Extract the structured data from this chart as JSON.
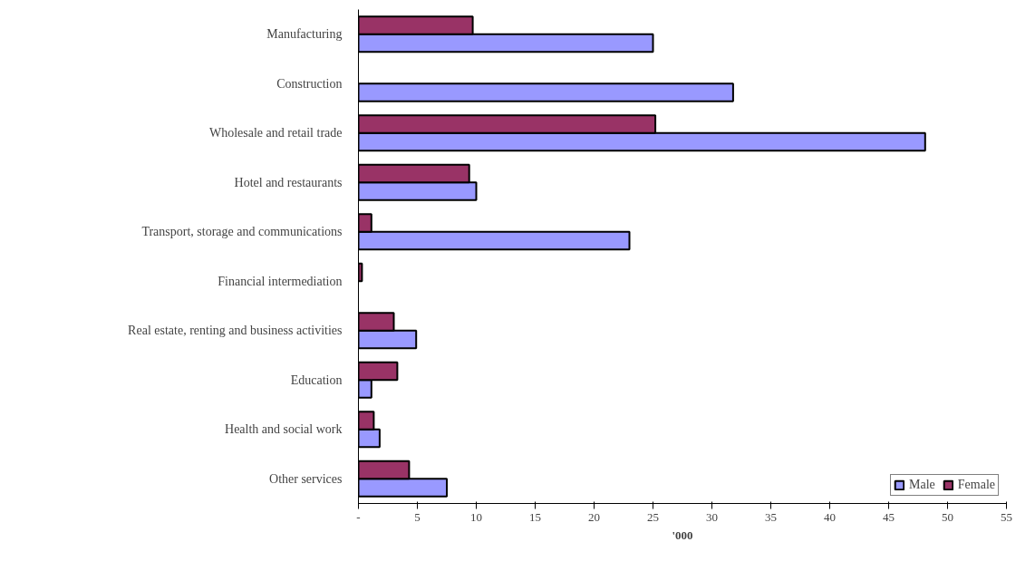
{
  "chart_data": {
    "type": "bar",
    "orientation": "horizontal",
    "xlabel": "'000",
    "categories": [
      "Manufacturing",
      "Construction",
      "Wholesale and retail trade",
      "Hotel and restaurants",
      "Transport, storage and communications",
      "Financial intermediation",
      "Real estate, renting and business activities",
      "Education",
      "Health and social work",
      "Other services"
    ],
    "series": [
      {
        "name": "Male",
        "color": "#9999ff",
        "values": [
          25.0,
          31.8,
          48.1,
          10.0,
          23.0,
          null,
          4.9,
          1.1,
          1.8,
          7.5
        ]
      },
      {
        "name": "Female",
        "color": "#993366",
        "values": [
          9.7,
          null,
          25.2,
          9.4,
          1.1,
          0.3,
          3.0,
          3.3,
          1.3,
          4.3
        ]
      }
    ],
    "xlim": [
      0,
      55
    ],
    "xticks": [
      {
        "value": 0,
        "label": "-"
      },
      5,
      10,
      15,
      20,
      25,
      30,
      35,
      40,
      45,
      50,
      55
    ],
    "grid": false,
    "legend": "bottom right"
  }
}
